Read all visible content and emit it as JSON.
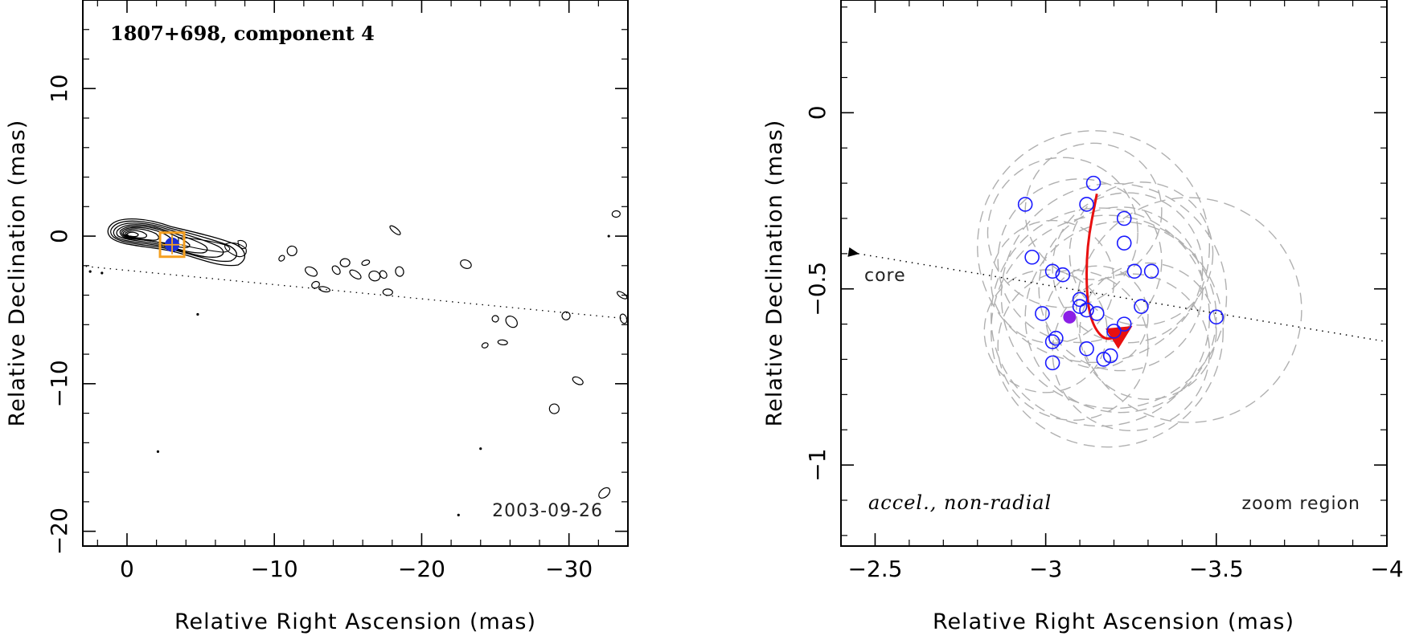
{
  "chart_data": [
    {
      "type": "contour",
      "title": "1807+698, component 4",
      "epoch": "2003-09-26",
      "xlabel": "Relative Right Ascension (mas)",
      "ylabel": "Relative Declination (mas)",
      "xlim": [
        3,
        -34
      ],
      "ylim": [
        -21,
        16
      ],
      "xticks": [
        0,
        -10,
        -20,
        -30
      ],
      "yticks": [
        10,
        0,
        -10,
        -20
      ],
      "xtick_labels": [
        "0",
        "−10",
        "−20",
        "−30"
      ],
      "ytick_labels": [
        "10",
        "0",
        "−10",
        "−20"
      ],
      "core": [
        0,
        0
      ],
      "component_position": [
        -3.06,
        -0.58
      ],
      "zoom_box": {
        "x": [
          -2.5,
          -4.0
        ],
        "y": [
          -1.25,
          0.3
        ]
      },
      "jet_axis": [
        [
          8.5,
          -1.5
        ],
        [
          -34,
          -5.6
        ]
      ],
      "contour_islands": [
        [
          -10.5,
          -1.5
        ],
        [
          -11.2,
          -1.0
        ],
        [
          -12.5,
          -2.4
        ],
        [
          -12.8,
          -3.3
        ],
        [
          -13.4,
          -3.6
        ],
        [
          -14.2,
          -2.3
        ],
        [
          -14.8,
          -1.8
        ],
        [
          -15.5,
          -2.6
        ],
        [
          -16.2,
          -1.8
        ],
        [
          -16.8,
          -2.7
        ],
        [
          -17.4,
          -2.6
        ],
        [
          -17.7,
          -3.8
        ],
        [
          -18.2,
          0.4
        ],
        [
          -18.5,
          -2.4
        ],
        [
          -23,
          -1.9
        ],
        [
          -25,
          -5.6
        ],
        [
          -25.5,
          -7.2
        ],
        [
          -26.1,
          -5.8
        ],
        [
          -29.8,
          -5.4
        ],
        [
          -30.6,
          -9.8
        ],
        [
          -24.3,
          -7.4
        ],
        [
          -29,
          -11.7
        ],
        [
          -32.4,
          -17.4
        ],
        [
          -33.2,
          1.5
        ],
        [
          -33.6,
          -4
        ],
        [
          -33.7,
          -5.6
        ]
      ],
      "noise_dots": [
        [
          2.5,
          -2.4
        ],
        [
          1.7,
          -2.5
        ],
        [
          -4.8,
          -5.3
        ],
        [
          -2.1,
          -14.6
        ],
        [
          -24,
          -14.4
        ],
        [
          -22.5,
          -18.9
        ],
        [
          -32.7,
          0
        ]
      ]
    },
    {
      "type": "scatter",
      "panel_label": "accel., non-radial",
      "region_label": "zoom region",
      "core_label": "core",
      "xlabel": "Relative Right Ascension (mas)",
      "ylabel": "Relative Declination (mas)",
      "xlim": [
        -2.4,
        -4.0
      ],
      "ylim": [
        -1.23,
        0.32
      ],
      "xticks": [
        -2.5,
        -3,
        -3.5,
        -4
      ],
      "yticks": [
        0,
        -0.5,
        -1
      ],
      "xtick_labels": [
        "−2.5",
        "−3",
        "−3.5",
        "−4"
      ],
      "ytick_labels": [
        "0",
        "−0.5",
        "−1"
      ],
      "jet_axis": [
        [
          -2.45,
          -0.4
        ],
        [
          -4.0,
          -0.65
        ]
      ],
      "series": [
        {
          "name": "component positions",
          "marker": "open-circle",
          "color": "#1a1aff",
          "points": [
            [
              -2.94,
              -0.26
            ],
            [
              -2.96,
              -0.41
            ],
            [
              -3.02,
              -0.45
            ],
            [
              -3.05,
              -0.46
            ],
            [
              -2.99,
              -0.57
            ],
            [
              -3.03,
              -0.64
            ],
            [
              -3.02,
              -0.65
            ],
            [
              -3.02,
              -0.71
            ],
            [
              -3.1,
              -0.53
            ],
            [
              -3.1,
              -0.55
            ],
            [
              -3.12,
              -0.56
            ],
            [
              -3.15,
              -0.57
            ],
            [
              -3.12,
              -0.67
            ],
            [
              -3.17,
              -0.7
            ],
            [
              -3.19,
              -0.69
            ],
            [
              -3.2,
              -0.62
            ],
            [
              -3.23,
              -0.6
            ],
            [
              -3.14,
              -0.2
            ],
            [
              -3.12,
              -0.26
            ],
            [
              -3.23,
              -0.3
            ],
            [
              -3.23,
              -0.37
            ],
            [
              -3.26,
              -0.45
            ],
            [
              -3.31,
              -0.45
            ],
            [
              -3.28,
              -0.55
            ],
            [
              -3.5,
              -0.58
            ]
          ]
        },
        {
          "name": "mean position",
          "marker": "filled-circle",
          "color": "#8b1fe6",
          "points": [
            [
              -3.07,
              -0.58
            ]
          ]
        }
      ],
      "trajectory": {
        "color": "#e81010",
        "points": [
          [
            -3.15,
            -0.23
          ],
          [
            -3.12,
            -0.38
          ],
          [
            -3.12,
            -0.53
          ],
          [
            -3.14,
            -0.61
          ],
          [
            -3.18,
            -0.65
          ],
          [
            -3.23,
            -0.62
          ]
        ]
      },
      "uncertainty_circles": [
        [
          -3.14,
          -0.38,
          0.34
        ],
        [
          -3.2,
          -0.52,
          0.33
        ],
        [
          -3.16,
          -0.58,
          0.32
        ],
        [
          -3.18,
          -0.62,
          0.34
        ],
        [
          -3.22,
          -0.5,
          0.24
        ],
        [
          -3.1,
          -0.42,
          0.24
        ],
        [
          -3.22,
          -0.58,
          0.28
        ],
        [
          -3.42,
          -0.56,
          0.33
        ],
        [
          -3.24,
          -0.44,
          0.22
        ],
        [
          -3.02,
          -0.48,
          0.18
        ],
        [
          -3.08,
          -0.66,
          0.22
        ],
        [
          -3.3,
          -0.62,
          0.2
        ],
        [
          -3.15,
          -0.58,
          0.15
        ],
        [
          -3.05,
          -0.34,
          0.22
        ],
        [
          -3.28,
          -0.4,
          0.21
        ],
        [
          -3.14,
          -0.28,
          0.2
        ],
        [
          -3.25,
          -0.68,
          0.23
        ],
        [
          -3.0,
          -0.62,
          0.18
        ]
      ]
    }
  ]
}
